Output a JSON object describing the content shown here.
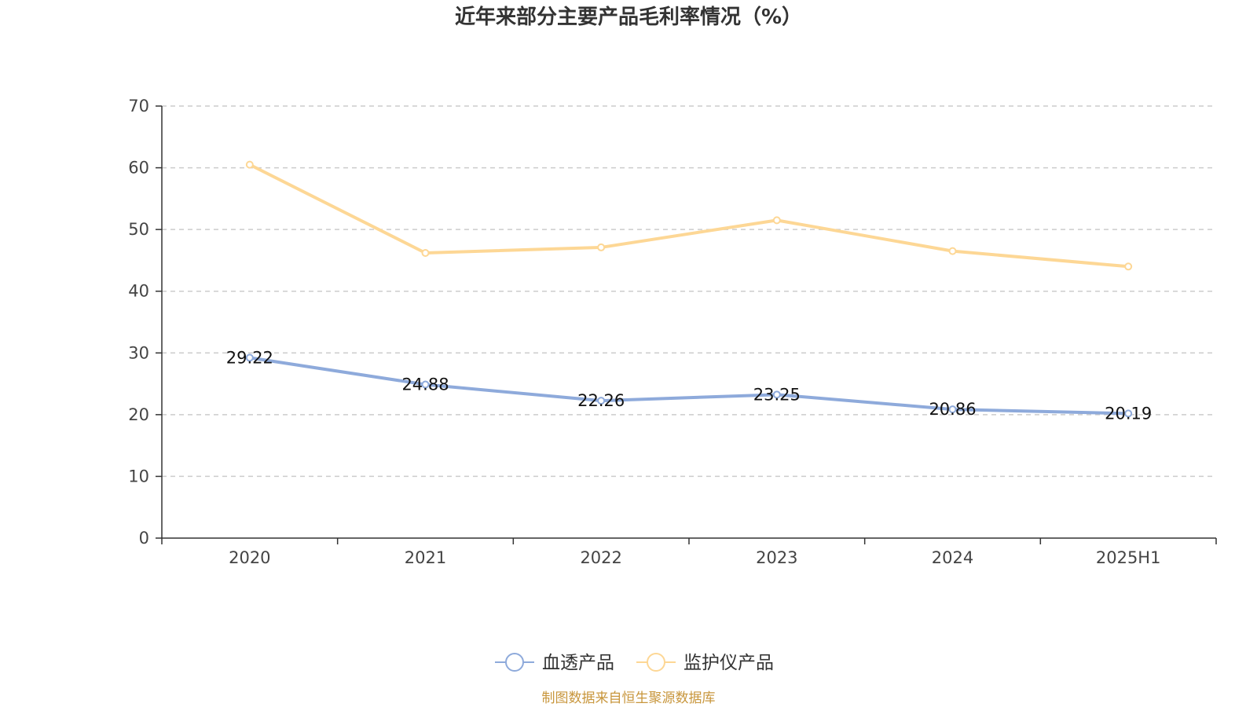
{
  "chart_data": {
    "type": "line",
    "title": "近年来部分主要产品毛利率情况（%）",
    "categories": [
      "2020",
      "2021",
      "2022",
      "2023",
      "2024",
      "2025H1"
    ],
    "series": [
      {
        "name": "血透产品",
        "color": "#8eaadb",
        "values": [
          29.22,
          24.88,
          22.26,
          23.25,
          20.86,
          20.19
        ],
        "labels": [
          "29.22",
          "24.88",
          "22.26",
          "23.25",
          "20.86",
          "20.19"
        ]
      },
      {
        "name": "监护仪产品",
        "color": "#fdd795",
        "values": [
          60.5,
          46.2,
          47.1,
          51.5,
          46.5,
          44.0
        ]
      }
    ],
    "ylim": [
      0,
      70
    ],
    "yticks": [
      "0",
      "10",
      "20",
      "30",
      "40",
      "50",
      "60",
      "70"
    ],
    "xlabel": "",
    "ylabel": "",
    "grid": true,
    "legend_position": "bottom-center"
  },
  "footer": {
    "source": "制图数据来自恒生聚源数据库"
  }
}
